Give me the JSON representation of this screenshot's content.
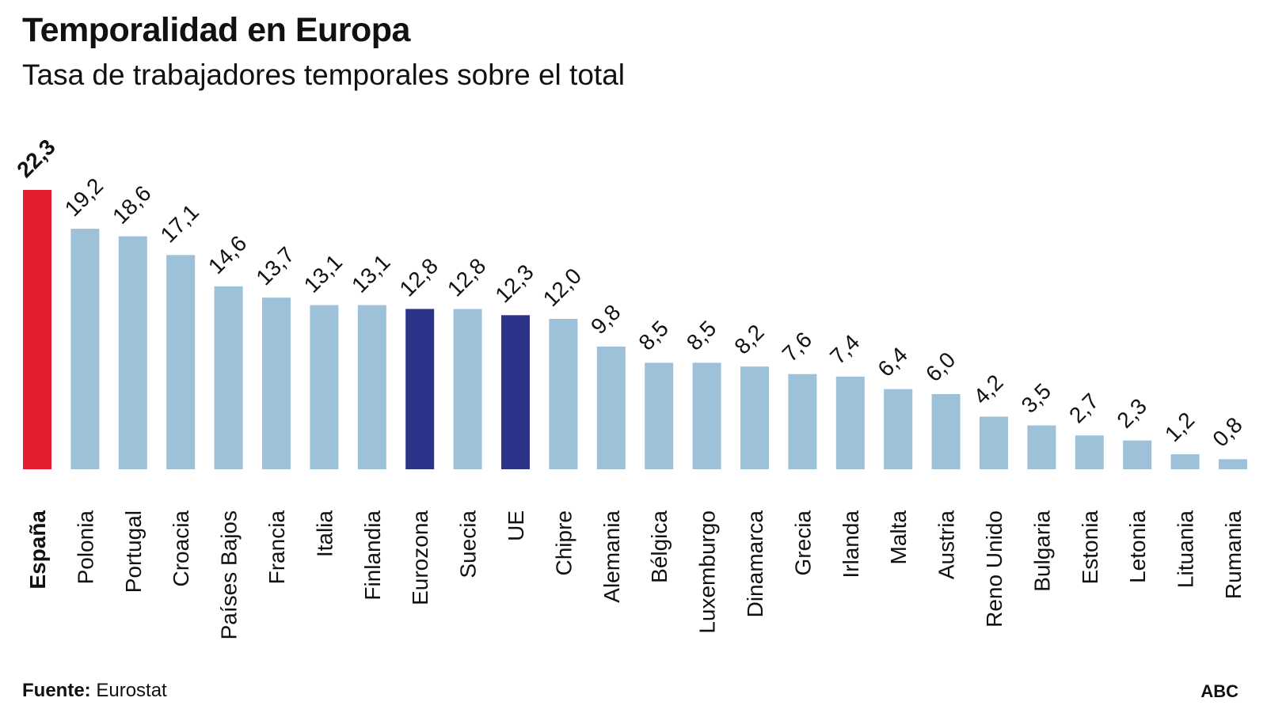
{
  "header": {
    "title": "Temporalidad en Europa",
    "subtitle": "Tasa de trabajadores temporales sobre el total"
  },
  "footer": {
    "source_label": "Fuente:",
    "source_value": "Eurostat",
    "brand": "ABC"
  },
  "colors": {
    "default": "#9dc1d8",
    "highlight_spain": "#e31d2d",
    "aggregate": "#2e338a"
  },
  "chart_data": {
    "type": "bar",
    "title": "Temporalidad en Europa",
    "subtitle": "Tasa de trabajadores temporales sobre el total",
    "categories": [
      "España",
      "Polonia",
      "Portugal",
      "Croacia",
      "Países Bajos",
      "Francia",
      "Italia",
      "Finlandia",
      "Eurozona",
      "Suecia",
      "UE",
      "Chipre",
      "Alemania",
      "Bélgica",
      "Luxemburgo",
      "Dinamarca",
      "Grecia",
      "Irlanda",
      "Malta",
      "Austria",
      "Reno Unido",
      "Bulgaria",
      "Estonia",
      "Letonia",
      "Lituania",
      "Rumania"
    ],
    "values": [
      22.3,
      19.2,
      18.6,
      17.1,
      14.6,
      13.7,
      13.1,
      13.1,
      12.8,
      12.8,
      12.3,
      12.0,
      9.8,
      8.5,
      8.5,
      8.2,
      7.6,
      7.4,
      6.4,
      6.0,
      4.2,
      3.5,
      2.7,
      2.3,
      1.2,
      0.8
    ],
    "value_labels": [
      "22,3",
      "19,2",
      "18,6",
      "17,1",
      "14,6",
      "13,7",
      "13,1",
      "13,1",
      "12,8",
      "12,8",
      "12,3",
      "12,0",
      "9,8",
      "8,5",
      "8,5",
      "8,2",
      "7,6",
      "7,4",
      "6,4",
      "6,0",
      "4,2",
      "3,5",
      "2,7",
      "2,3",
      "1,2",
      "0,8"
    ],
    "highlight": {
      "España": "highlight_spain",
      "Eurozona": "aggregate",
      "UE": "aggregate"
    },
    "bold_categories": [
      "España"
    ],
    "xlabel": "",
    "ylabel": "",
    "ylim": [
      0,
      22.3
    ],
    "grid": false,
    "legend": "none"
  }
}
